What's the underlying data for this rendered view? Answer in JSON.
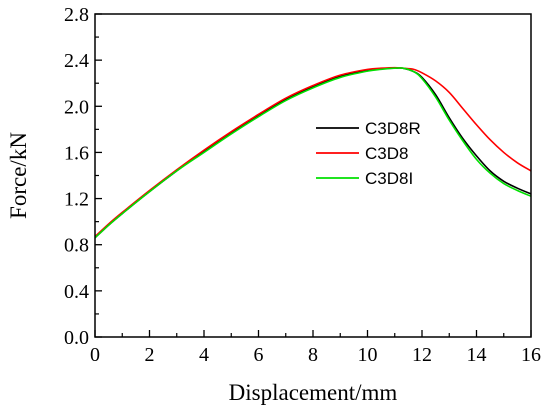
{
  "chart_data": {
    "type": "line",
    "title": "",
    "xlabel": "Displacement/mm",
    "ylabel": "Force/kN",
    "xlim": [
      0,
      16
    ],
    "ylim": [
      0.0,
      2.8
    ],
    "xticks": [
      0,
      2,
      4,
      6,
      8,
      10,
      12,
      14,
      16
    ],
    "xtick_labels": [
      "0",
      "2",
      "4",
      "6",
      "8",
      "10",
      "12",
      "14",
      "16"
    ],
    "yticks": [
      0.0,
      0.4,
      0.8,
      1.2,
      1.6,
      2.0,
      2.4,
      2.8
    ],
    "ytick_labels": [
      "0.0",
      "0.4",
      "0.8",
      "1.2",
      "1.6",
      "2.0",
      "2.4",
      "2.8"
    ],
    "grid": false,
    "legend_position": "center-right",
    "series": [
      {
        "name": "C3D8R",
        "color": "#000000",
        "x": [
          0,
          0.5,
          1,
          2,
          3,
          4,
          5,
          6,
          7,
          8,
          9,
          10,
          10.5,
          11,
          11.3,
          11.7,
          12,
          12.5,
          13,
          13.5,
          14,
          14.5,
          15,
          15.5,
          16
        ],
        "y": [
          0.86,
          0.97,
          1.07,
          1.26,
          1.44,
          1.61,
          1.77,
          1.92,
          2.06,
          2.17,
          2.26,
          2.31,
          2.325,
          2.33,
          2.33,
          2.3,
          2.25,
          2.1,
          1.9,
          1.72,
          1.57,
          1.44,
          1.35,
          1.29,
          1.24
        ]
      },
      {
        "name": "C3D8",
        "color": "#ff0000",
        "x": [
          0,
          0.5,
          1,
          2,
          3,
          4,
          5,
          6,
          7,
          8,
          9,
          10,
          10.5,
          11,
          11.3,
          11.7,
          12,
          12.5,
          13,
          13.5,
          14,
          14.5,
          15,
          15.5,
          16
        ],
        "y": [
          0.87,
          0.98,
          1.08,
          1.27,
          1.45,
          1.62,
          1.78,
          1.93,
          2.07,
          2.18,
          2.27,
          2.32,
          2.33,
          2.335,
          2.33,
          2.32,
          2.29,
          2.22,
          2.12,
          1.98,
          1.84,
          1.71,
          1.6,
          1.51,
          1.44
        ]
      },
      {
        "name": "C3D8I",
        "color": "#00e000",
        "x": [
          0,
          0.5,
          1,
          2,
          3,
          4,
          5,
          6,
          7,
          8,
          9,
          10,
          10.5,
          11,
          11.3,
          11.7,
          12,
          12.5,
          13,
          13.5,
          14,
          14.5,
          15,
          15.5,
          16
        ],
        "y": [
          0.86,
          0.97,
          1.07,
          1.26,
          1.44,
          1.6,
          1.76,
          1.91,
          2.05,
          2.16,
          2.25,
          2.305,
          2.32,
          2.33,
          2.33,
          2.3,
          2.24,
          2.08,
          1.88,
          1.7,
          1.54,
          1.42,
          1.33,
          1.27,
          1.22
        ]
      }
    ]
  }
}
